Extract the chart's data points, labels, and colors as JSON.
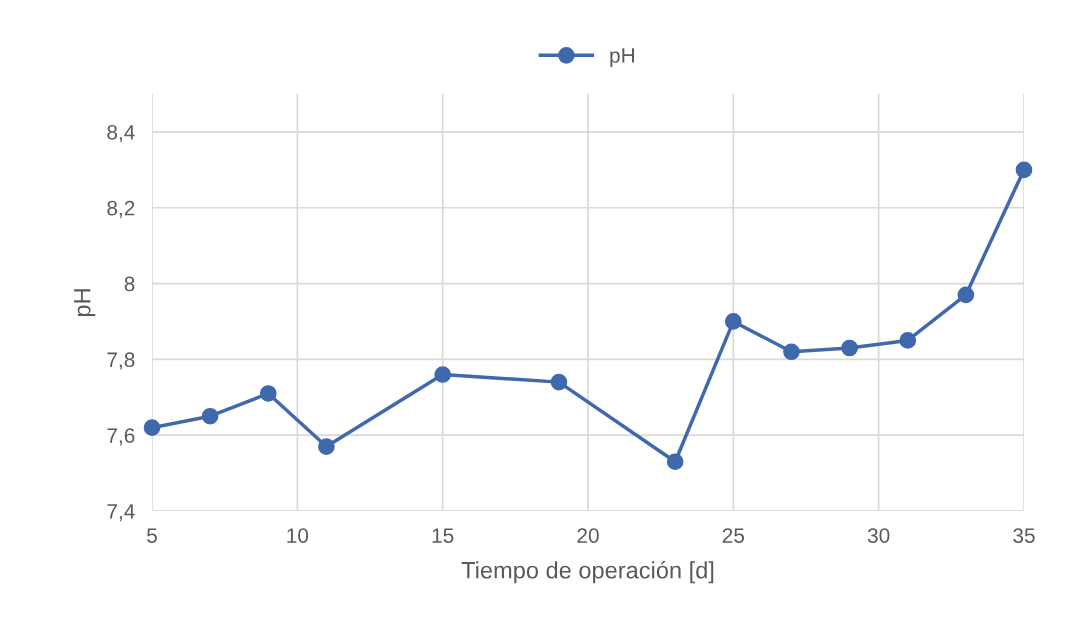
{
  "chart_data": {
    "type": "line",
    "xlabel": "Tiempo de operación [d]",
    "ylabel": "pH",
    "x": [
      5,
      7,
      9,
      11,
      15,
      19,
      23,
      25,
      27,
      29,
      31,
      33,
      35
    ],
    "series": [
      {
        "name": "pH",
        "color": "#3f68ad",
        "values": [
          7.62,
          7.65,
          7.71,
          7.57,
          7.76,
          7.74,
          7.53,
          7.9,
          7.82,
          7.83,
          7.85,
          7.97,
          8.3
        ]
      }
    ],
    "xlim": [
      5,
      35
    ],
    "xticks": [
      5,
      10,
      15,
      20,
      25,
      30,
      35
    ],
    "ylim": [
      7.4,
      8.5
    ],
    "yticks": [
      {
        "value": 7.4,
        "label": "7,4"
      },
      {
        "value": 7.6,
        "label": "7,6"
      },
      {
        "value": 7.8,
        "label": "7,8"
      },
      8,
      {
        "value": 8.2,
        "label": "8,2"
      },
      {
        "value": 8.4,
        "label": "8,4"
      }
    ],
    "grid": true,
    "legend": "top",
    "marker": "circle",
    "line_style": "solid"
  }
}
